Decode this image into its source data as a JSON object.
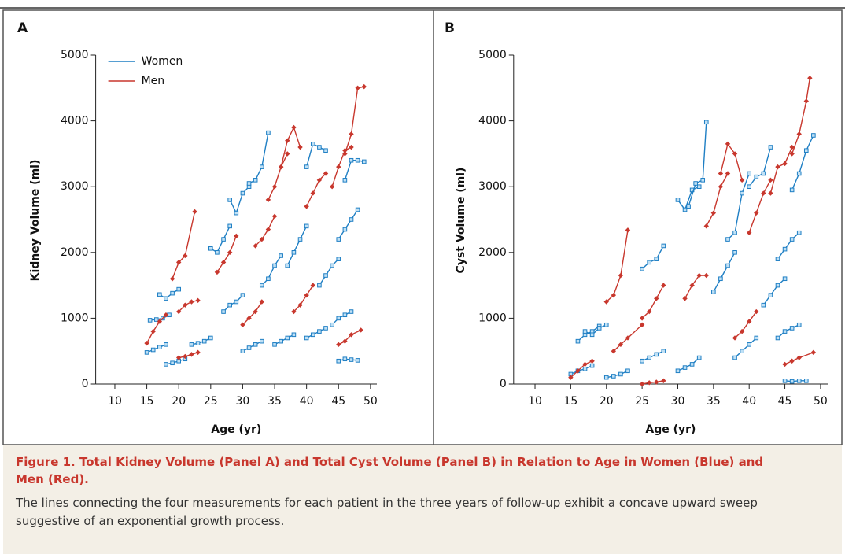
{
  "chart_data": [
    {
      "type": "line",
      "panel_label": "A",
      "xlabel": "Age (yr)",
      "ylabel": "Kidney Volume (ml)",
      "xlim": [
        7,
        51
      ],
      "ylim": [
        0,
        5000
      ],
      "xticks": [
        10,
        15,
        20,
        25,
        30,
        35,
        40,
        45,
        50
      ],
      "yticks": [
        0,
        1000,
        2000,
        3000,
        4000,
        5000
      ],
      "legend": "upper left",
      "series": [
        {
          "name": "Women",
          "color": "#1f7fc4",
          "marker": "square",
          "lines": [
            {
              "x": [
                15.5,
                16.5,
                17.5,
                18.5
              ],
              "values": [
                970,
                980,
                1000,
                1050
              ]
            },
            {
              "x": [
                17,
                18,
                19,
                20
              ],
              "values": [
                1360,
                1300,
                1380,
                1440
              ]
            },
            {
              "x": [
                25,
                26,
                27,
                28
              ],
              "values": [
                2060,
                2000,
                2200,
                2400
              ]
            },
            {
              "x": [
                28,
                29,
                30,
                31
              ],
              "values": [
                2800,
                2600,
                2900,
                3000
              ]
            },
            {
              "x": [
                31,
                32,
                33,
                34
              ],
              "values": [
                3050,
                3100,
                3300,
                3820
              ]
            },
            {
              "x": [
                40,
                41,
                42,
                43
              ],
              "values": [
                3300,
                3650,
                3600,
                3550
              ]
            },
            {
              "x": [
                45,
                46,
                47,
                48
              ],
              "values": [
                2200,
                2350,
                2500,
                2650
              ]
            },
            {
              "x": [
                46,
                47,
                48,
                49
              ],
              "values": [
                3100,
                3400,
                3400,
                3380
              ]
            },
            {
              "x": [
                15,
                16,
                17,
                18
              ],
              "values": [
                480,
                520,
                560,
                600
              ]
            },
            {
              "x": [
                18,
                19,
                20,
                21
              ],
              "values": [
                300,
                320,
                350,
                380
              ]
            },
            {
              "x": [
                22,
                23,
                24,
                25
              ],
              "values": [
                600,
                620,
                650,
                700
              ]
            },
            {
              "x": [
                27,
                28,
                29,
                30
              ],
              "values": [
                1100,
                1200,
                1250,
                1350
              ]
            },
            {
              "x": [
                33,
                34,
                35,
                36
              ],
              "values": [
                1500,
                1600,
                1800,
                1950
              ]
            },
            {
              "x": [
                37,
                38,
                39,
                40
              ],
              "values": [
                1800,
                2000,
                2200,
                2400
              ]
            },
            {
              "x": [
                42,
                43,
                44,
                45
              ],
              "values": [
                1500,
                1650,
                1800,
                1900
              ]
            },
            {
              "x": [
                44,
                45,
                46,
                47
              ],
              "values": [
                900,
                1000,
                1050,
                1100
              ]
            },
            {
              "x": [
                45,
                46,
                47,
                48
              ],
              "values": [
                350,
                380,
                370,
                360
              ]
            },
            {
              "x": [
                35,
                36,
                37,
                38
              ],
              "values": [
                600,
                650,
                700,
                750
              ]
            },
            {
              "x": [
                30,
                31,
                32,
                33
              ],
              "values": [
                500,
                550,
                600,
                650
              ]
            },
            {
              "x": [
                40,
                41,
                42,
                43
              ],
              "values": [
                700,
                750,
                800,
                850
              ]
            }
          ]
        },
        {
          "name": "Men",
          "color": "#c8372d",
          "marker": "diamond",
          "lines": [
            {
              "x": [
                19,
                20,
                21,
                22.5
              ],
              "values": [
                1600,
                1850,
                1950,
                2620
              ]
            },
            {
              "x": [
                15,
                16,
                17,
                18
              ],
              "values": [
                620,
                800,
                950,
                1050
              ]
            },
            {
              "x": [
                20,
                21,
                22,
                23
              ],
              "values": [
                1100,
                1200,
                1250,
                1270
              ]
            },
            {
              "x": [
                26,
                27,
                28,
                29
              ],
              "values": [
                1700,
                1850,
                2000,
                2250
              ]
            },
            {
              "x": [
                34,
                35,
                36,
                37
              ],
              "values": [
                2800,
                3000,
                3300,
                3500
              ]
            },
            {
              "x": [
                36,
                37,
                38,
                39
              ],
              "values": [
                3300,
                3700,
                3900,
                3600
              ]
            },
            {
              "x": [
                44,
                45,
                46,
                47
              ],
              "values": [
                3000,
                3300,
                3550,
                3600
              ]
            },
            {
              "x": [
                46,
                47,
                48,
                49
              ],
              "values": [
                3500,
                3800,
                4500,
                4520
              ]
            },
            {
              "x": [
                30,
                31,
                32,
                33
              ],
              "values": [
                900,
                1000,
                1100,
                1250
              ]
            },
            {
              "x": [
                38,
                39,
                40,
                41
              ],
              "values": [
                1100,
                1200,
                1350,
                1500
              ]
            },
            {
              "x": [
                45,
                46,
                47,
                48.5
              ],
              "values": [
                600,
                650,
                750,
                820
              ]
            },
            {
              "x": [
                20,
                21,
                22,
                23
              ],
              "values": [
                400,
                420,
                450,
                480
              ]
            },
            {
              "x": [
                40,
                41,
                42,
                43
              ],
              "values": [
                2700,
                2900,
                3100,
                3200
              ]
            },
            {
              "x": [
                32,
                33,
                34,
                35
              ],
              "values": [
                2100,
                2200,
                2350,
                2550
              ]
            }
          ]
        }
      ]
    },
    {
      "type": "line",
      "panel_label": "B",
      "xlabel": "Age (yr)",
      "ylabel": "Cyst Volume (ml)",
      "xlim": [
        7,
        51
      ],
      "ylim": [
        0,
        5000
      ],
      "xticks": [
        10,
        15,
        20,
        25,
        30,
        35,
        40,
        45,
        50
      ],
      "yticks": [
        0,
        1000,
        2000,
        3000,
        4000,
        5000
      ],
      "series": [
        {
          "color": "#1f7fc4",
          "marker": "square",
          "lines": [
            {
              "x": [
                16,
                17,
                18,
                19
              ],
              "values": [
                650,
                750,
                800,
                880
              ]
            },
            {
              "x": [
                17,
                18,
                19,
                20
              ],
              "values": [
                800,
                750,
                850,
                900
              ]
            },
            {
              "x": [
                25,
                26,
                27,
                28
              ],
              "values": [
                1750,
                1850,
                1900,
                2100
              ]
            },
            {
              "x": [
                30,
                31,
                32,
                33
              ],
              "values": [
                2800,
                2650,
                2950,
                3000
              ]
            },
            {
              "x": [
                31.5,
                32.5,
                33.5,
                34
              ],
              "values": [
                2700,
                3050,
                3100,
                3980
              ]
            },
            {
              "x": [
                40,
                41,
                42,
                43
              ],
              "values": [
                3000,
                3150,
                3200,
                3600
              ]
            },
            {
              "x": [
                46,
                47,
                48,
                49
              ],
              "values": [
                2950,
                3200,
                3550,
                3780
              ]
            },
            {
              "x": [
                44,
                45,
                46,
                47
              ],
              "values": [
                1900,
                2050,
                2200,
                2300
              ]
            },
            {
              "x": [
                15,
                16,
                17,
                18
              ],
              "values": [
                150,
                200,
                230,
                280
              ]
            },
            {
              "x": [
                20,
                21,
                22,
                23
              ],
              "values": [
                100,
                120,
                150,
                200
              ]
            },
            {
              "x": [
                25,
                26,
                27,
                28
              ],
              "values": [
                350,
                400,
                450,
                500
              ]
            },
            {
              "x": [
                35,
                36,
                37,
                38
              ],
              "values": [
                1400,
                1600,
                1800,
                2000
              ]
            },
            {
              "x": [
                37,
                38,
                39,
                40
              ],
              "values": [
                2200,
                2300,
                2900,
                3200
              ]
            },
            {
              "x": [
                42,
                43,
                44,
                45
              ],
              "values": [
                1200,
                1350,
                1500,
                1600
              ]
            },
            {
              "x": [
                44,
                45,
                46,
                47
              ],
              "values": [
                700,
                800,
                850,
                900
              ]
            },
            {
              "x": [
                45,
                46,
                47,
                48
              ],
              "values": [
                50,
                40,
                50,
                50
              ]
            },
            {
              "x": [
                30,
                31,
                32,
                33
              ],
              "values": [
                200,
                250,
                300,
                400
              ]
            },
            {
              "x": [
                38,
                39,
                40,
                41
              ],
              "values": [
                400,
                500,
                600,
                700
              ]
            }
          ]
        },
        {
          "color": "#c8372d",
          "marker": "diamond",
          "lines": [
            {
              "x": [
                20,
                21,
                22,
                23
              ],
              "values": [
                1250,
                1350,
                1650,
                2340
              ]
            },
            {
              "x": [
                15,
                16,
                17,
                18
              ],
              "values": [
                100,
                200,
                300,
                350
              ]
            },
            {
              "x": [
                21,
                22,
                23,
                25
              ],
              "values": [
                500,
                600,
                700,
                900
              ]
            },
            {
              "x": [
                25,
                26,
                27,
                28
              ],
              "values": [
                1000,
                1100,
                1300,
                1500
              ]
            },
            {
              "x": [
                34,
                35,
                36,
                37
              ],
              "values": [
                2400,
                2600,
                3000,
                3200
              ]
            },
            {
              "x": [
                36,
                37,
                38,
                39
              ],
              "values": [
                3200,
                3650,
                3500,
                3100
              ]
            },
            {
              "x": [
                43,
                44,
                45,
                46
              ],
              "values": [
                2900,
                3300,
                3350,
                3600
              ]
            },
            {
              "x": [
                46,
                47,
                48,
                48.5
              ],
              "values": [
                3500,
                3800,
                4300,
                4650
              ]
            },
            {
              "x": [
                31,
                32,
                33,
                34
              ],
              "values": [
                1300,
                1500,
                1650,
                1650
              ]
            },
            {
              "x": [
                38,
                39,
                40,
                41
              ],
              "values": [
                700,
                800,
                950,
                1100
              ]
            },
            {
              "x": [
                45,
                46,
                47,
                49
              ],
              "values": [
                300,
                350,
                400,
                480
              ]
            },
            {
              "x": [
                25,
                26,
                27,
                28
              ],
              "values": [
                0,
                20,
                30,
                50
              ]
            },
            {
              "x": [
                40,
                41,
                42,
                43
              ],
              "values": [
                2300,
                2600,
                2900,
                3100
              ]
            }
          ]
        }
      ]
    }
  ],
  "caption": {
    "title": "Figure 1. Total Kidney Volume (Panel A) and Total Cyst Volume (Panel B) in Relation to Age in Women (Blue) and Men (Red).",
    "text": "The lines connecting the four measurements for each patient in the three years of follow-up exhibit a concave upward sweep suggestive of an exponential growth process."
  }
}
